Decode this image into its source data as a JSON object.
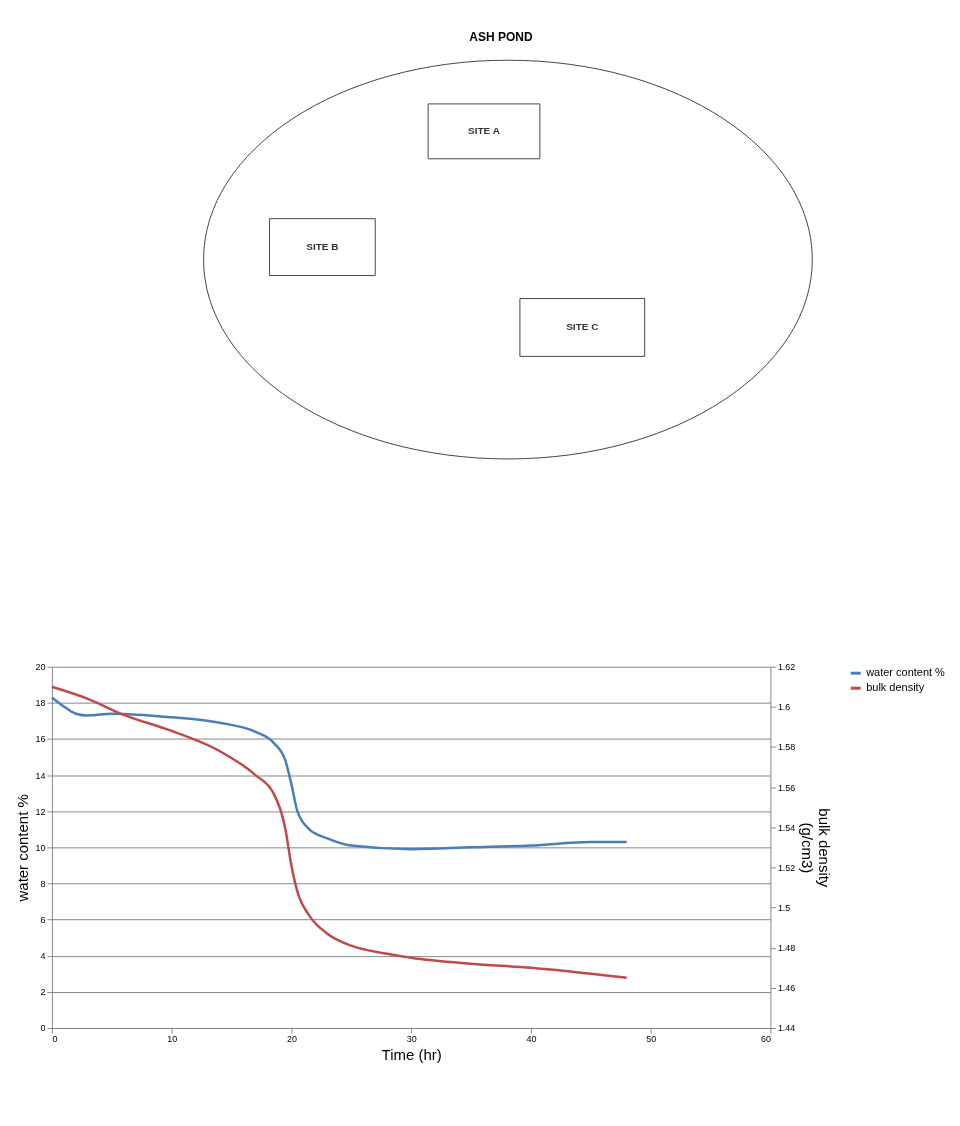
{
  "chart_data": [
    {
      "type": "other",
      "title": "ASH POND",
      "annotations": [
        "SITE A",
        "SITE B",
        "SITE C"
      ]
    },
    {
      "type": "line",
      "xlabel": "Time (hr)",
      "ylabel": "water content %",
      "y2label": "bulk density (g/cm3)",
      "xlim": [
        0,
        60
      ],
      "xticks": [
        0,
        10,
        20,
        30,
        40,
        50,
        60
      ],
      "ylim": [
        0,
        20
      ],
      "yticks": [
        0,
        2,
        4,
        6,
        8,
        10,
        12,
        14,
        16,
        18,
        20
      ],
      "y2lim": [
        1.44,
        1.62
      ],
      "y2ticks": [
        1.44,
        1.46,
        1.48,
        1.5,
        1.52,
        1.54,
        1.56,
        1.58,
        1.6,
        1.62
      ],
      "grid": "y",
      "legend": "right",
      "line_style": "solid",
      "marker": "none",
      "series": [
        {
          "name": "water content %",
          "color": "#4a7ebb",
          "x": [
            0,
            1,
            2,
            3,
            5,
            10,
            14,
            17,
            18.5,
            19.5,
            20,
            20.5,
            21.5,
            23,
            25,
            30,
            35,
            40,
            45,
            48
          ],
          "values": [
            18.3,
            17.8,
            17.4,
            17.3,
            17.4,
            17.2,
            16.9,
            16.4,
            15.8,
            14.8,
            13.5,
            12.0,
            11.0,
            10.5,
            10.1,
            9.9,
            10.0,
            10.1,
            10.3,
            10.3
          ]
        },
        {
          "name": "bulk density",
          "color": "#be4b48",
          "axis": "y2",
          "x": [
            0,
            3,
            6,
            10,
            14,
            17,
            18.5,
            19.5,
            20,
            20.5,
            21.5,
            23,
            25,
            28,
            30,
            35,
            40,
            45,
            48
          ],
          "values": [
            1.61,
            1.604,
            1.596,
            1.588,
            1.578,
            1.566,
            1.557,
            1.539,
            1.521,
            1.508,
            1.496,
            1.487,
            1.481,
            1.477,
            1.475,
            1.472,
            1.47,
            1.467,
            1.465
          ]
        }
      ]
    }
  ]
}
